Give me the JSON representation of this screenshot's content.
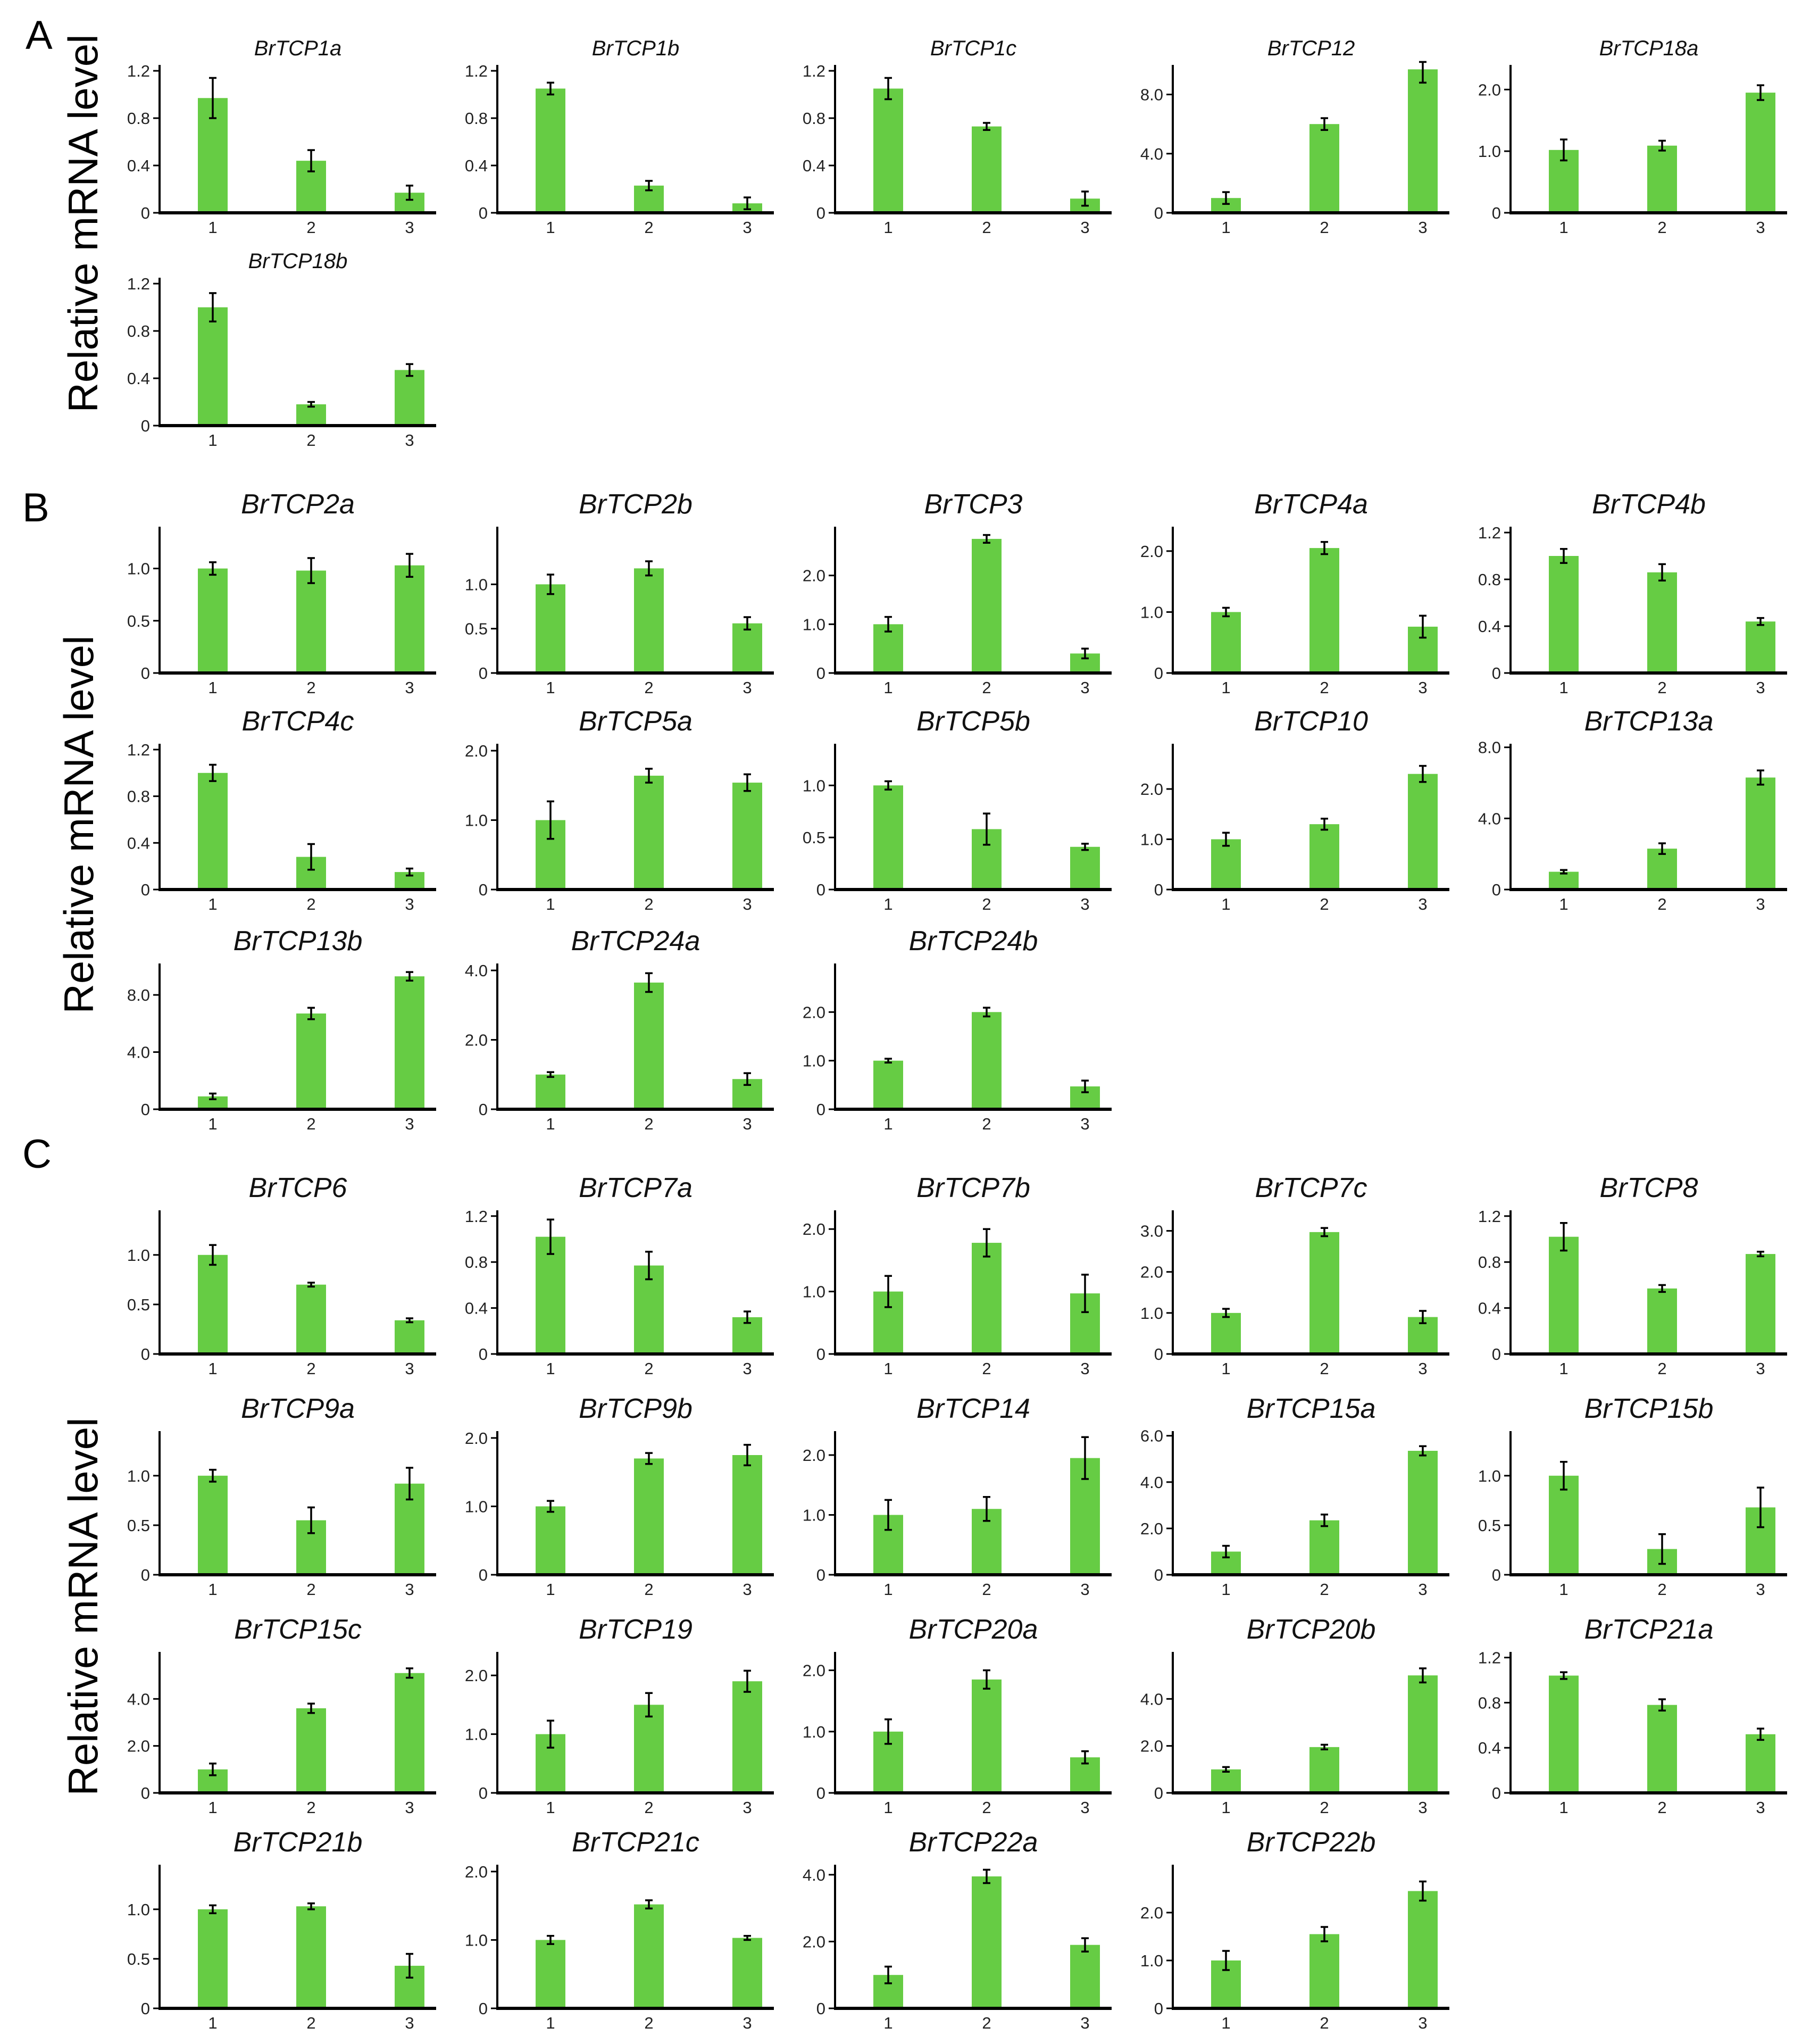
{
  "figure": {
    "panel_labels": [
      "A",
      "B",
      "C"
    ],
    "ylabel": "Relative mRNA level",
    "bar_color": "#66cc44",
    "axis_color": "#000000"
  },
  "chart_data": [
    {
      "type": "bar",
      "panel": "A",
      "title": "BrTCP1a",
      "categories": [
        "1",
        "2",
        "3"
      ],
      "values": [
        0.97,
        0.44,
        0.17
      ],
      "errors": [
        0.17,
        0.09,
        0.06
      ],
      "ylim": [
        0,
        1.25
      ],
      "yticks": [
        "0",
        "0.4",
        "0.8",
        "1.2"
      ],
      "ytick_values": [
        0,
        0.4,
        0.8,
        1.2
      ]
    },
    {
      "type": "bar",
      "panel": "A",
      "title": "BrTCP1b",
      "categories": [
        "1",
        "2",
        "3"
      ],
      "values": [
        1.05,
        0.23,
        0.08
      ],
      "errors": [
        0.05,
        0.04,
        0.05
      ],
      "ylim": [
        0,
        1.25
      ],
      "yticks": [
        "0",
        "0.4",
        "0.8",
        "1.2"
      ],
      "ytick_values": [
        0,
        0.4,
        0.8,
        1.2
      ]
    },
    {
      "type": "bar",
      "panel": "A",
      "title": "BrTCP1c",
      "categories": [
        "1",
        "2",
        "3"
      ],
      "values": [
        1.05,
        0.73,
        0.12
      ],
      "errors": [
        0.09,
        0.03,
        0.06
      ],
      "ylim": [
        0,
        1.25
      ],
      "yticks": [
        "0",
        "0.4",
        "0.8",
        "1.2"
      ],
      "ytick_values": [
        0,
        0.4,
        0.8,
        1.2
      ]
    },
    {
      "type": "bar",
      "panel": "A",
      "title": "BrTCP12",
      "categories": [
        "1",
        "2",
        "3"
      ],
      "values": [
        1.0,
        6.0,
        9.7
      ],
      "errors": [
        0.4,
        0.4,
        0.9
      ],
      "ylim": [
        0,
        10
      ],
      "yticks": [
        "0",
        "4.0",
        "8.0"
      ],
      "ytick_values": [
        0,
        4,
        8
      ]
    },
    {
      "type": "bar",
      "panel": "A",
      "title": "BrTCP18a",
      "categories": [
        "1",
        "2",
        "3"
      ],
      "values": [
        1.02,
        1.09,
        1.95
      ],
      "errors": [
        0.17,
        0.08,
        0.12
      ],
      "ylim": [
        0,
        2.4
      ],
      "yticks": [
        "0",
        "1.0",
        "2.0"
      ],
      "ytick_values": [
        0,
        1,
        2
      ]
    },
    {
      "type": "bar",
      "panel": "A",
      "title": "BrTCP18b",
      "categories": [
        "1",
        "2",
        "3"
      ],
      "values": [
        1.0,
        0.18,
        0.47
      ],
      "errors": [
        0.12,
        0.02,
        0.05
      ],
      "ylim": [
        0,
        1.25
      ],
      "yticks": [
        "0",
        "0.4",
        "0.8",
        "1.2"
      ],
      "ytick_values": [
        0,
        0.4,
        0.8,
        1.2
      ]
    },
    {
      "type": "bar",
      "panel": "B",
      "title": "BrTCP2a",
      "categories": [
        "1",
        "2",
        "3"
      ],
      "values": [
        1.0,
        0.98,
        1.03
      ],
      "errors": [
        0.06,
        0.12,
        0.11
      ],
      "ylim": [
        0,
        1.4
      ],
      "yticks": [
        "0",
        "0.5",
        "1.0"
      ],
      "ytick_values": [
        0,
        0.5,
        1.0
      ]
    },
    {
      "type": "bar",
      "panel": "B",
      "title": "BrTCP2b",
      "categories": [
        "1",
        "2",
        "3"
      ],
      "values": [
        1.0,
        1.18,
        0.56
      ],
      "errors": [
        0.11,
        0.08,
        0.07
      ],
      "ylim": [
        0,
        1.65
      ],
      "yticks": [
        "0",
        "0.5",
        "1.0"
      ],
      "ytick_values": [
        0,
        0.5,
        1.0
      ]
    },
    {
      "type": "bar",
      "panel": "B",
      "title": "BrTCP3",
      "categories": [
        "1",
        "2",
        "3"
      ],
      "values": [
        1.0,
        2.75,
        0.4
      ],
      "errors": [
        0.15,
        0.08,
        0.1
      ],
      "ylim": [
        0,
        3.0
      ],
      "yticks": [
        "0",
        "1.0",
        "2.0"
      ],
      "ytick_values": [
        0,
        1,
        2
      ]
    },
    {
      "type": "bar",
      "panel": "B",
      "title": "BrTCP4a",
      "categories": [
        "1",
        "2",
        "3"
      ],
      "values": [
        1.0,
        2.05,
        0.76
      ],
      "errors": [
        0.07,
        0.1,
        0.18
      ],
      "ylim": [
        0,
        2.4
      ],
      "yticks": [
        "0",
        "1.0",
        "2.0"
      ],
      "ytick_values": [
        0,
        1,
        2
      ]
    },
    {
      "type": "bar",
      "panel": "B",
      "title": "BrTCP4b",
      "categories": [
        "1",
        "2",
        "3"
      ],
      "values": [
        1.0,
        0.86,
        0.44
      ],
      "errors": [
        0.06,
        0.07,
        0.03
      ],
      "ylim": [
        0,
        1.25
      ],
      "yticks": [
        "0",
        "0.4",
        "0.8",
        "1.2"
      ],
      "ytick_values": [
        0,
        0.4,
        0.8,
        1.2
      ]
    },
    {
      "type": "bar",
      "panel": "B",
      "title": "BrTCP4c",
      "categories": [
        "1",
        "2",
        "3"
      ],
      "values": [
        1.0,
        0.28,
        0.15
      ],
      "errors": [
        0.07,
        0.11,
        0.03
      ],
      "ylim": [
        0,
        1.25
      ],
      "yticks": [
        "0",
        "0.4",
        "0.8",
        "1.2"
      ],
      "ytick_values": [
        0,
        0.4,
        0.8,
        1.2
      ]
    },
    {
      "type": "bar",
      "panel": "B",
      "title": "BrTCP5a",
      "categories": [
        "1",
        "2",
        "3"
      ],
      "values": [
        1.0,
        1.64,
        1.54
      ],
      "errors": [
        0.27,
        0.1,
        0.12
      ],
      "ylim": [
        0,
        2.1
      ],
      "yticks": [
        "0",
        "1.0",
        "2.0"
      ],
      "ytick_values": [
        0,
        1,
        2
      ]
    },
    {
      "type": "bar",
      "panel": "B",
      "title": "BrTCP5b",
      "categories": [
        "1",
        "2",
        "3"
      ],
      "values": [
        1.0,
        0.58,
        0.41
      ],
      "errors": [
        0.04,
        0.15,
        0.03
      ],
      "ylim": [
        0,
        1.4
      ],
      "yticks": [
        "0",
        "0.5",
        "1.0"
      ],
      "ytick_values": [
        0,
        0.5,
        1.0
      ]
    },
    {
      "type": "bar",
      "panel": "B",
      "title": "BrTCP10",
      "categories": [
        "1",
        "2",
        "3"
      ],
      "values": [
        1.0,
        1.3,
        2.3
      ],
      "errors": [
        0.13,
        0.11,
        0.16
      ],
      "ylim": [
        0,
        2.9
      ],
      "yticks": [
        "0",
        "1.0",
        "2.0"
      ],
      "ytick_values": [
        0,
        1,
        2
      ]
    },
    {
      "type": "bar",
      "panel": "B",
      "title": "BrTCP13a",
      "categories": [
        "1",
        "2",
        "3"
      ],
      "values": [
        1.0,
        2.3,
        6.3
      ],
      "errors": [
        0.1,
        0.3,
        0.4
      ],
      "ylim": [
        0,
        8.2
      ],
      "yticks": [
        "0",
        "4.0",
        "8.0"
      ],
      "ytick_values": [
        0,
        4,
        8
      ]
    },
    {
      "type": "bar",
      "panel": "B",
      "title": "BrTCP13b",
      "categories": [
        "1",
        "2",
        "3"
      ],
      "values": [
        0.9,
        6.7,
        9.3
      ],
      "errors": [
        0.2,
        0.4,
        0.3
      ],
      "ylim": [
        0,
        10.2
      ],
      "yticks": [
        "0",
        "4.0",
        "8.0"
      ],
      "ytick_values": [
        0,
        4,
        8
      ]
    },
    {
      "type": "bar",
      "panel": "B",
      "title": "BrTCP24a",
      "categories": [
        "1",
        "2",
        "3"
      ],
      "values": [
        1.0,
        3.65,
        0.87
      ],
      "errors": [
        0.07,
        0.27,
        0.17
      ],
      "ylim": [
        0,
        4.2
      ],
      "yticks": [
        "0",
        "2.0",
        "4.0"
      ],
      "ytick_values": [
        0,
        2,
        4
      ]
    },
    {
      "type": "bar",
      "panel": "B",
      "title": "BrTCP24b",
      "categories": [
        "1",
        "2",
        "3"
      ],
      "values": [
        1.0,
        2.0,
        0.47
      ],
      "errors": [
        0.04,
        0.09,
        0.12
      ],
      "ylim": [
        0,
        3.0
      ],
      "yticks": [
        "0",
        "1.0",
        "2.0"
      ],
      "ytick_values": [
        0,
        1,
        2
      ]
    },
    {
      "type": "bar",
      "panel": "C",
      "title": "BrTCP6",
      "categories": [
        "1",
        "2",
        "3"
      ],
      "values": [
        1.0,
        0.7,
        0.34
      ],
      "errors": [
        0.1,
        0.02,
        0.02
      ],
      "ylim": [
        0,
        1.45
      ],
      "yticks": [
        "0",
        "0.5",
        "1.0"
      ],
      "ytick_values": [
        0,
        0.5,
        1.0
      ]
    },
    {
      "type": "bar",
      "panel": "C",
      "title": "BrTCP7a",
      "categories": [
        "1",
        "2",
        "3"
      ],
      "values": [
        1.02,
        0.77,
        0.32
      ],
      "errors": [
        0.15,
        0.12,
        0.05
      ],
      "ylim": [
        0,
        1.25
      ],
      "yticks": [
        "0",
        "0.4",
        "0.8",
        "1.2"
      ],
      "ytick_values": [
        0,
        0.4,
        0.8,
        1.2
      ]
    },
    {
      "type": "bar",
      "panel": "C",
      "title": "BrTCP7b",
      "categories": [
        "1",
        "2",
        "3"
      ],
      "values": [
        1.0,
        1.78,
        0.97
      ],
      "errors": [
        0.25,
        0.22,
        0.3
      ],
      "ylim": [
        0,
        2.3
      ],
      "yticks": [
        "0",
        "1.0",
        "2.0"
      ],
      "ytick_values": [
        0,
        1,
        2
      ]
    },
    {
      "type": "bar",
      "panel": "C",
      "title": "BrTCP7c",
      "categories": [
        "1",
        "2",
        "3"
      ],
      "values": [
        1.0,
        2.97,
        0.9
      ],
      "errors": [
        0.1,
        0.1,
        0.15
      ],
      "ylim": [
        0,
        3.5
      ],
      "yticks": [
        "0",
        "1.0",
        "2.0",
        "3.0"
      ],
      "ytick_values": [
        0,
        1,
        2,
        3
      ]
    },
    {
      "type": "bar",
      "panel": "C",
      "title": "BrTCP8",
      "categories": [
        "1",
        "2",
        "3"
      ],
      "values": [
        1.02,
        0.57,
        0.87
      ],
      "errors": [
        0.12,
        0.03,
        0.02
      ],
      "ylim": [
        0,
        1.25
      ],
      "yticks": [
        "0",
        "0.4",
        "0.8",
        "1.2"
      ],
      "ytick_values": [
        0,
        0.4,
        0.8,
        1.2
      ]
    },
    {
      "type": "bar",
      "panel": "C",
      "title": "BrTCP9a",
      "categories": [
        "1",
        "2",
        "3"
      ],
      "values": [
        1.0,
        0.55,
        0.92
      ],
      "errors": [
        0.06,
        0.13,
        0.16
      ],
      "ylim": [
        0,
        1.45
      ],
      "yticks": [
        "0",
        "0.5",
        "1.0"
      ],
      "ytick_values": [
        0,
        0.5,
        1.0
      ]
    },
    {
      "type": "bar",
      "panel": "C",
      "title": "BrTCP9b",
      "categories": [
        "1",
        "2",
        "3"
      ],
      "values": [
        1.0,
        1.7,
        1.75
      ],
      "errors": [
        0.08,
        0.08,
        0.15
      ],
      "ylim": [
        0,
        2.1
      ],
      "yticks": [
        "0",
        "1.0",
        "2.0"
      ],
      "ytick_values": [
        0,
        1,
        2
      ]
    },
    {
      "type": "bar",
      "panel": "C",
      "title": "BrTCP14",
      "categories": [
        "1",
        "2",
        "3"
      ],
      "values": [
        1.0,
        1.1,
        1.95
      ],
      "errors": [
        0.25,
        0.2,
        0.35
      ],
      "ylim": [
        0,
        2.4
      ],
      "yticks": [
        "0",
        "1.0",
        "2.0"
      ],
      "ytick_values": [
        0,
        1,
        2
      ]
    },
    {
      "type": "bar",
      "panel": "C",
      "title": "BrTCP15a",
      "categories": [
        "1",
        "2",
        "3"
      ],
      "values": [
        1.0,
        2.35,
        5.35
      ],
      "errors": [
        0.25,
        0.25,
        0.2
      ],
      "ylim": [
        0,
        6.2
      ],
      "yticks": [
        "0",
        "2.0",
        "4.0",
        "6.0"
      ],
      "ytick_values": [
        0,
        2,
        4,
        6
      ]
    },
    {
      "type": "bar",
      "panel": "C",
      "title": "BrTCP15b",
      "categories": [
        "1",
        "2",
        "3"
      ],
      "values": [
        1.0,
        0.26,
        0.68
      ],
      "errors": [
        0.14,
        0.15,
        0.2
      ],
      "ylim": [
        0,
        1.45
      ],
      "yticks": [
        "0",
        "0.5",
        "1.0"
      ],
      "ytick_values": [
        0,
        0.5,
        1.0
      ]
    },
    {
      "type": "bar",
      "panel": "C",
      "title": "BrTCP15c",
      "categories": [
        "1",
        "2",
        "3"
      ],
      "values": [
        1.0,
        3.6,
        5.1
      ],
      "errors": [
        0.25,
        0.2,
        0.2
      ],
      "ylim": [
        0,
        6.0
      ],
      "yticks": [
        "0",
        "2.0",
        "4.0"
      ],
      "ytick_values": [
        0,
        2,
        4
      ]
    },
    {
      "type": "bar",
      "panel": "C",
      "title": "BrTCP19",
      "categories": [
        "1",
        "2",
        "3"
      ],
      "values": [
        1.0,
        1.5,
        1.9
      ],
      "errors": [
        0.23,
        0.2,
        0.18
      ],
      "ylim": [
        0,
        2.4
      ],
      "yticks": [
        "0",
        "1.0",
        "2.0"
      ],
      "ytick_values": [
        0,
        1,
        2
      ]
    },
    {
      "type": "bar",
      "panel": "C",
      "title": "BrTCP20a",
      "categories": [
        "1",
        "2",
        "3"
      ],
      "values": [
        1.0,
        1.85,
        0.58
      ],
      "errors": [
        0.2,
        0.15,
        0.1
      ],
      "ylim": [
        0,
        2.3
      ],
      "yticks": [
        "0",
        "1.0",
        "2.0"
      ],
      "ytick_values": [
        0,
        1,
        2
      ]
    },
    {
      "type": "bar",
      "panel": "C",
      "title": "BrTCP20b",
      "categories": [
        "1",
        "2",
        "3"
      ],
      "values": [
        1.0,
        1.95,
        5.0
      ],
      "errors": [
        0.1,
        0.1,
        0.3
      ],
      "ylim": [
        0,
        6.0
      ],
      "yticks": [
        "0",
        "2.0",
        "4.0"
      ],
      "ytick_values": [
        0,
        2,
        4
      ]
    },
    {
      "type": "bar",
      "panel": "C",
      "title": "BrTCP21a",
      "categories": [
        "1",
        "2",
        "3"
      ],
      "values": [
        1.04,
        0.78,
        0.52
      ],
      "errors": [
        0.03,
        0.05,
        0.05
      ],
      "ylim": [
        0,
        1.25
      ],
      "yticks": [
        "0",
        "0.4",
        "0.8",
        "1.2"
      ],
      "ytick_values": [
        0,
        0.4,
        0.8,
        1.2
      ]
    },
    {
      "type": "bar",
      "panel": "C",
      "title": "BrTCP21b",
      "categories": [
        "1",
        "2",
        "3"
      ],
      "values": [
        1.0,
        1.03,
        0.43
      ],
      "errors": [
        0.04,
        0.03,
        0.12
      ],
      "ylim": [
        0,
        1.45
      ],
      "yticks": [
        "0",
        "0.5",
        "1.0"
      ],
      "ytick_values": [
        0,
        0.5,
        1.0
      ]
    },
    {
      "type": "bar",
      "panel": "C",
      "title": "BrTCP21c",
      "categories": [
        "1",
        "2",
        "3"
      ],
      "values": [
        1.0,
        1.52,
        1.03
      ],
      "errors": [
        0.06,
        0.06,
        0.03
      ],
      "ylim": [
        0,
        2.1
      ],
      "yticks": [
        "0",
        "1.0",
        "2.0"
      ],
      "ytick_values": [
        0,
        1,
        2
      ]
    },
    {
      "type": "bar",
      "panel": "C",
      "title": "BrTCP22a",
      "categories": [
        "1",
        "2",
        "3"
      ],
      "values": [
        1.0,
        3.95,
        1.9
      ],
      "errors": [
        0.25,
        0.2,
        0.2
      ],
      "ylim": [
        0,
        4.3
      ],
      "yticks": [
        "0",
        "2.0",
        "4.0"
      ],
      "ytick_values": [
        0,
        2,
        4
      ]
    },
    {
      "type": "bar",
      "panel": "C",
      "title": "BrTCP22b",
      "categories": [
        "1",
        "2",
        "3"
      ],
      "values": [
        1.0,
        1.55,
        2.45
      ],
      "errors": [
        0.2,
        0.15,
        0.2
      ],
      "ylim": [
        0,
        3.0
      ],
      "yticks": [
        "0",
        "1.0",
        "2.0"
      ],
      "ytick_values": [
        0,
        1,
        2
      ]
    }
  ]
}
